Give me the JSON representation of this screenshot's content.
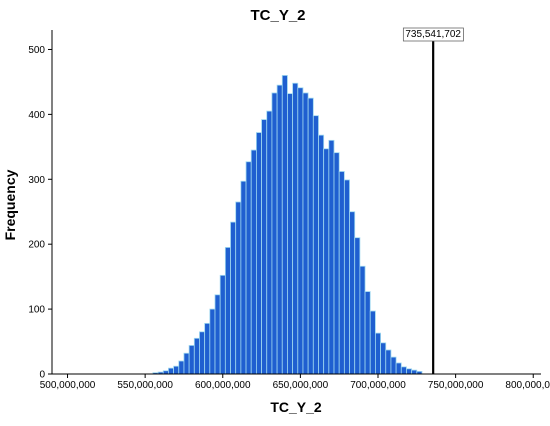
{
  "chart_data": {
    "type": "bar",
    "title": "TC_Y_2",
    "xlabel": "TC_Y_2",
    "ylabel": "Frequency",
    "bin_start": 555000000,
    "bin_width": 3333333,
    "bin_counts": [
      2,
      3,
      5,
      9,
      12,
      20,
      32,
      44,
      55,
      65,
      78,
      100,
      122,
      152,
      195,
      234,
      265,
      297,
      327,
      345,
      372,
      392,
      405,
      433,
      445,
      460,
      432,
      448,
      441,
      433,
      425,
      398,
      368,
      347,
      360,
      341,
      312,
      299,
      250,
      210,
      166,
      127,
      97,
      63,
      48,
      37,
      26,
      17,
      11,
      8,
      6,
      4
    ],
    "xlim": [
      490000000,
      805000000
    ],
    "ylim": [
      0,
      530
    ],
    "xticks": [
      500000000,
      550000000,
      600000000,
      650000000,
      700000000,
      750000000,
      800000000
    ],
    "xtick_labels": [
      "500,000,000",
      "550,000,000",
      "600,000,000",
      "650,000,000",
      "700,000,000",
      "750,000,000",
      "800,000,000"
    ],
    "yticks": [
      0,
      100,
      200,
      300,
      400,
      500
    ],
    "ytick_labels": [
      "0",
      "100",
      "200",
      "300",
      "400",
      "500"
    ],
    "reference_line": {
      "x": 735541702,
      "label": "735,541,702"
    },
    "bar_color": "#1f5fd0",
    "bar_edge_color": "#9fd8f0",
    "grid": false
  }
}
